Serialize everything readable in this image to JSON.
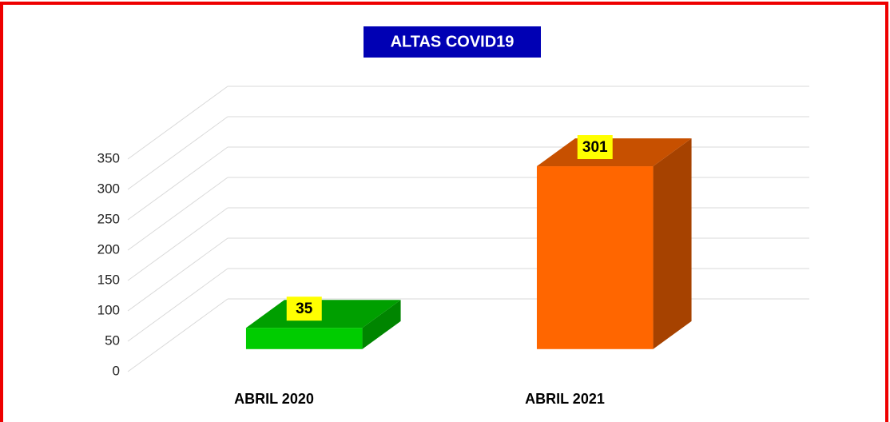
{
  "chart_data": {
    "type": "bar3d",
    "title": "ALTAS COVID19",
    "categories": [
      "ABRIL 2020",
      "ABRIL 2021"
    ],
    "values": [
      35,
      301
    ],
    "colors": [
      "#00cc00",
      "#ff6600"
    ],
    "ylim": [
      0,
      350
    ],
    "yticks": [
      0,
      50,
      100,
      150,
      200,
      250,
      300,
      350
    ],
    "grid": true
  }
}
